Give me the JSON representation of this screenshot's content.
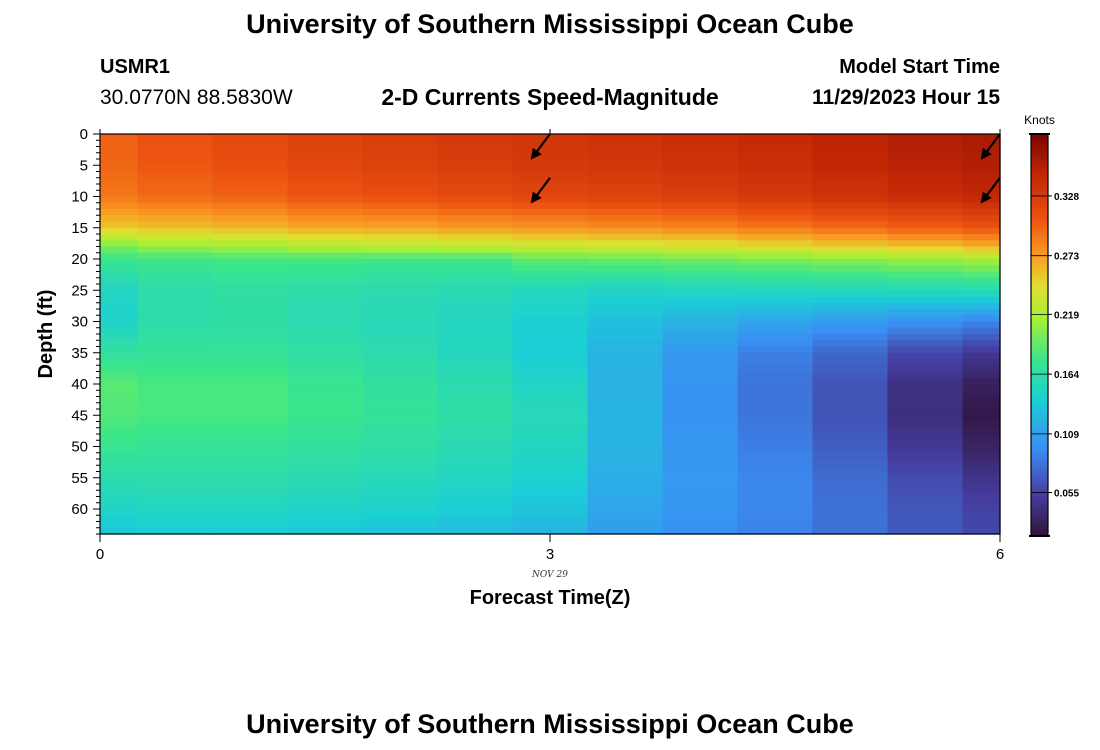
{
  "header": {
    "title": "University of Southern Mississippi Ocean Cube",
    "station_id": "USMR1",
    "coords": "30.0770N  88.5830W",
    "plot_title": "2-D Currents Speed-Magnitude",
    "run_label": "Model Start Time",
    "run_time": "11/29/2023 Hour 15"
  },
  "footer": {
    "title": "University of Southern Mississippi Ocean Cube"
  },
  "chart_data": {
    "type": "heatmap",
    "title": "2-D Currents Speed-Magnitude",
    "xlabel": "Forecast Time(Z)",
    "ylabel": "Depth (ft)",
    "xlim": [
      0,
      6
    ],
    "ylim": [
      64,
      0
    ],
    "x_ticks": [
      0,
      3,
      6
    ],
    "x_date_label": "NOV 29",
    "y_ticks": [
      0,
      5,
      10,
      15,
      20,
      25,
      30,
      35,
      40,
      45,
      50,
      55,
      60
    ],
    "colorbar": {
      "unit": "Knots",
      "range": [
        0.015,
        0.385
      ],
      "tick_values": [
        0.055,
        0.109,
        0.164,
        0.219,
        0.273,
        0.328
      ],
      "tick_labels": [
        "0.055",
        "0.109",
        "0.164",
        "0.219",
        "0.273",
        "0.328"
      ]
    },
    "time_bins": [
      0.0,
      0.25,
      0.75,
      1.25,
      1.75,
      2.25,
      2.75,
      3.25,
      3.75,
      4.25,
      4.75,
      5.25,
      5.75,
      6.0
    ],
    "depth_levels": [
      0,
      5,
      10,
      15,
      18,
      20,
      25,
      30,
      35,
      40,
      45,
      50,
      55,
      60,
      64
    ],
    "speed_by_time": [
      [
        0.3,
        0.298,
        0.29,
        0.255,
        0.2,
        0.175,
        0.15,
        0.145,
        0.168,
        0.188,
        0.185,
        0.175,
        0.16,
        0.148,
        0.135
      ],
      [
        0.31,
        0.305,
        0.296,
        0.258,
        0.21,
        0.178,
        0.162,
        0.162,
        0.17,
        0.182,
        0.182,
        0.172,
        0.162,
        0.15,
        0.138
      ],
      [
        0.315,
        0.31,
        0.3,
        0.262,
        0.215,
        0.18,
        0.165,
        0.164,
        0.17,
        0.182,
        0.182,
        0.172,
        0.162,
        0.15,
        0.138
      ],
      [
        0.322,
        0.318,
        0.306,
        0.268,
        0.222,
        0.18,
        0.162,
        0.158,
        0.165,
        0.175,
        0.176,
        0.168,
        0.158,
        0.147,
        0.135
      ],
      [
        0.326,
        0.322,
        0.31,
        0.27,
        0.225,
        0.178,
        0.16,
        0.155,
        0.16,
        0.168,
        0.17,
        0.164,
        0.155,
        0.145,
        0.132
      ],
      [
        0.33,
        0.326,
        0.314,
        0.274,
        0.228,
        0.178,
        0.157,
        0.15,
        0.152,
        0.16,
        0.164,
        0.158,
        0.15,
        0.14,
        0.128
      ],
      [
        0.333,
        0.33,
        0.318,
        0.277,
        0.232,
        0.19,
        0.152,
        0.142,
        0.14,
        0.148,
        0.155,
        0.15,
        0.143,
        0.133,
        0.122
      ],
      [
        0.336,
        0.332,
        0.321,
        0.28,
        0.236,
        0.192,
        0.148,
        0.13,
        0.122,
        0.12,
        0.122,
        0.122,
        0.118,
        0.112,
        0.105
      ],
      [
        0.34,
        0.336,
        0.325,
        0.284,
        0.24,
        0.196,
        0.15,
        0.12,
        0.104,
        0.1,
        0.1,
        0.102,
        0.104,
        0.102,
        0.098
      ],
      [
        0.345,
        0.34,
        0.33,
        0.29,
        0.245,
        0.2,
        0.152,
        0.112,
        0.088,
        0.082,
        0.083,
        0.088,
        0.092,
        0.092,
        0.09
      ],
      [
        0.35,
        0.346,
        0.336,
        0.296,
        0.252,
        0.205,
        0.153,
        0.105,
        0.075,
        0.065,
        0.064,
        0.07,
        0.078,
        0.08,
        0.08
      ],
      [
        0.356,
        0.352,
        0.342,
        0.302,
        0.258,
        0.21,
        0.155,
        0.098,
        0.058,
        0.042,
        0.04,
        0.048,
        0.06,
        0.066,
        0.068
      ],
      [
        0.36,
        0.356,
        0.346,
        0.308,
        0.264,
        0.215,
        0.158,
        0.092,
        0.048,
        0.028,
        0.02,
        0.03,
        0.045,
        0.055,
        0.058
      ]
    ],
    "arrows": [
      {
        "x": 3.0,
        "depth": 0
      },
      {
        "x": 3.0,
        "depth": 7
      },
      {
        "x": 6.0,
        "depth": 0
      },
      {
        "x": 6.0,
        "depth": 7
      }
    ]
  }
}
